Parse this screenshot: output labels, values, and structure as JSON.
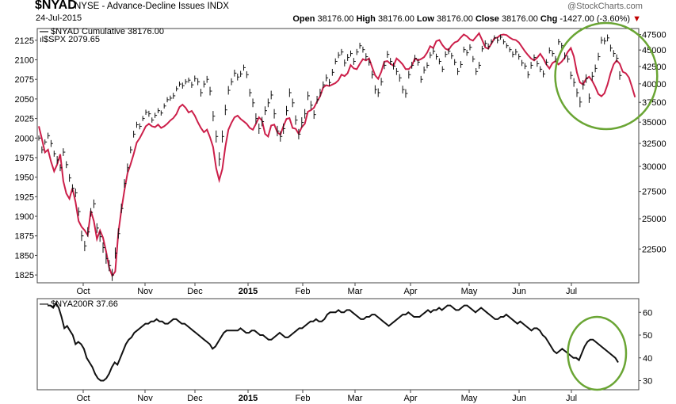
{
  "header": {
    "symbol": "$NYAD",
    "name": "NYSE - Advance-Decline Issues INDX",
    "date": "24-Jul-2015",
    "brand": "@StockCharts.com",
    "open_label": "Open",
    "open": "38176.00",
    "high_label": "High",
    "high": "38176.00",
    "low_label": "Low",
    "low": "38176.00",
    "close_label": "Close",
    "close": "38176.00",
    "chg_label": "Chg",
    "chg": "-1427.00 (-3.60%)",
    "chg_arrow": "▼"
  },
  "colors": {
    "spx": "#111111",
    "nyad": "#cc1f4a",
    "nya200r": "#111111",
    "highlight": "#6aa534"
  },
  "chart_data": [
    {
      "type": "line",
      "legend": [
        "$NYAD Cumulative 38176.00",
        "$SPX 2079.65"
      ],
      "x_ticks": [
        "Oct",
        "Nov",
        "Dec",
        "2015",
        "Feb",
        "Mar",
        "Apr",
        "May",
        "Jun",
        "Jul"
      ],
      "left_axis": {
        "ticks": [
          1825,
          1850,
          1875,
          1900,
          1925,
          1950,
          1975,
          2000,
          2025,
          2050,
          2075,
          2100,
          2125
        ],
        "ylim": [
          1815,
          2140
        ]
      },
      "right_axis": {
        "ticks": [
          22500,
          25000,
          27500,
          30000,
          32500,
          35000,
          37500,
          40000,
          42500,
          45000,
          47500
        ],
        "scale": "log",
        "ylim": [
          20000,
          48500
        ]
      },
      "series": [
        {
          "name": "$SPX",
          "axis": "left",
          "style": "hlc-bars",
          "values": [
            2000,
            1985,
            1995,
            2003,
            1993,
            1980,
            1972,
            1962,
            1982,
            1966,
            1949,
            1936,
            1930,
            1906,
            1875,
            1862,
            1880,
            1905,
            1916,
            1885,
            1874,
            1860,
            1846,
            1837,
            1825,
            1853,
            1878,
            1910,
            1942,
            1962,
            1985,
            2005,
            2017,
            2015,
            2025,
            2033,
            2031,
            2023,
            2029,
            2035,
            2032,
            2041,
            2049,
            2051,
            2054,
            2063,
            2069,
            2067,
            2072,
            2074,
            2068,
            2076,
            2072,
            2058,
            2069,
            2075,
            2060,
            2028,
            2002,
            1973,
            2002,
            2036,
            2061,
            2072,
            2083,
            2078,
            2082,
            2090,
            2081,
            2058,
            2045,
            2025,
            2012,
            2021,
            2035,
            2045,
            2055,
            2031,
            2009,
            2002,
            2012,
            2035,
            2058,
            2045,
            2023,
            2005,
            2020,
            2031,
            2054,
            2042,
            2030,
            2049,
            2058,
            2068,
            2077,
            2071,
            2084,
            2098,
            2106,
            2110,
            2096,
            2103,
            2108,
            2098,
            2110,
            2118,
            2113,
            2104,
            2097,
            2081,
            2062,
            2058,
            2072,
            2093,
            2107,
            2098,
            2092,
            2085,
            2077,
            2062,
            2057,
            2081,
            2093,
            2102,
            2097,
            2075,
            2087,
            2093,
            2106,
            2111,
            2104,
            2098,
            2088,
            2107,
            2111,
            2105,
            2097,
            2085,
            2094,
            2113,
            2109,
            2116,
            2101,
            2085,
            2093,
            2114,
            2121,
            2117,
            2123,
            2128,
            2125,
            2129,
            2123,
            2118,
            2113,
            2107,
            2110,
            2104,
            2096,
            2092,
            2081,
            2093,
            2103,
            2095,
            2088,
            2082,
            2097,
            2112,
            2108,
            2101,
            2123,
            2118,
            2105,
            2101,
            2080,
            2071,
            2058,
            2046,
            2068,
            2076,
            2051,
            2079,
            2089,
            2104,
            2125,
            2124,
            2128,
            2115,
            2108,
            2102,
            2080
          ],
          "range": [
            6,
            8,
            6,
            7,
            8,
            7,
            9,
            8,
            9,
            8,
            9,
            9,
            10,
            10,
            12,
            12,
            11,
            10,
            10,
            11,
            12,
            12,
            12,
            13,
            14,
            13,
            12,
            11,
            10,
            10,
            8,
            8,
            7,
            7,
            6,
            6,
            7,
            6,
            6,
            6,
            6,
            6,
            6,
            6,
            7,
            6,
            6,
            7,
            6,
            6,
            7,
            7,
            8,
            9,
            8,
            8,
            10,
            12,
            14,
            16,
            14,
            12,
            10,
            8,
            8,
            8,
            7,
            7,
            8,
            9,
            10,
            12,
            12,
            11,
            10,
            10,
            10,
            11,
            12,
            12,
            12,
            11,
            10,
            10,
            11,
            12,
            12,
            11,
            10,
            10,
            10,
            9,
            9,
            8,
            8,
            8,
            8,
            7,
            7,
            7,
            8,
            8,
            7,
            8,
            7,
            7,
            7,
            8,
            8,
            9,
            10,
            10,
            9,
            9,
            8,
            8,
            8,
            8,
            9,
            9,
            10,
            9,
            8,
            8,
            8,
            8,
            8,
            7,
            7,
            7,
            7,
            7,
            7,
            7,
            7,
            7,
            7,
            8,
            8,
            7,
            7,
            7,
            7,
            8,
            8,
            7,
            7,
            7,
            6,
            6,
            7,
            6,
            6,
            6,
            6,
            7,
            7,
            7,
            7,
            7,
            8,
            8,
            7,
            7,
            7,
            8,
            7,
            7,
            7,
            7,
            7,
            7,
            8,
            8,
            9,
            10,
            10,
            12,
            11,
            10,
            11,
            10,
            9,
            9,
            8,
            8,
            8,
            8,
            8,
            9,
            10
          ]
        },
        {
          "name": "$NYAD Cumulative",
          "axis": "right",
          "values": [
            34500,
            33000,
            31500,
            31800,
            30500,
            29500,
            30200,
            31300,
            28500,
            27300,
            26800,
            27800,
            26500,
            24800,
            24300,
            24000,
            23600,
            25700,
            24800,
            23300,
            24000,
            23400,
            22300,
            21100,
            20500,
            20800,
            23800,
            25800,
            27600,
            29300,
            30200,
            31300,
            32600,
            33100,
            33800,
            34500,
            34800,
            34500,
            34400,
            34700,
            34300,
            34500,
            34800,
            35200,
            35500,
            36000,
            36900,
            37200,
            36800,
            36200,
            36400,
            35800,
            35000,
            34300,
            33800,
            34100,
            33200,
            32100,
            29800,
            28600,
            29700,
            32100,
            34100,
            34900,
            35600,
            35800,
            35400,
            35100,
            34800,
            34300,
            34100,
            34800,
            35600,
            35200,
            33600,
            33300,
            34600,
            34700,
            33800,
            33500,
            34500,
            35400,
            35500,
            34300,
            34200,
            33600,
            34400,
            34800,
            36300,
            36500,
            36800,
            37600,
            38300,
            39500,
            39800,
            39700,
            39900,
            40100,
            40500,
            41300,
            41100,
            41500,
            42700,
            42200,
            42100,
            42900,
            43600,
            43400,
            43700,
            42400,
            41200,
            40700,
            41700,
            43200,
            43300,
            42900,
            42600,
            43700,
            43300,
            42800,
            42100,
            42100,
            42600,
            43700,
            43400,
            43600,
            43900,
            44600,
            45600,
            45300,
            46400,
            46600,
            45800,
            45200,
            45000,
            45700,
            46200,
            46400,
            47000,
            47500,
            47200,
            46700,
            46500,
            47100,
            47700,
            46600,
            45400,
            45200,
            46000,
            46900,
            47000,
            47400,
            47500,
            47400,
            47000,
            46700,
            46600,
            46200,
            45500,
            44800,
            44200,
            43700,
            43400,
            43800,
            44400,
            43700,
            42800,
            42200,
            43000,
            43300,
            42800,
            43200,
            43800,
            44700,
            45300,
            44000,
            41600,
            40200,
            39900,
            40700,
            41000,
            40400,
            39600,
            38600,
            38300,
            38700,
            39900,
            41500,
            42800,
            43400,
            42900,
            41700,
            41500,
            40900,
            39600,
            38176
          ]
        },
        {
          "name": "highlight",
          "style": "ellipse",
          "x_index": [
            172,
            195
          ]
        }
      ]
    },
    {
      "type": "line",
      "legend": [
        "$NYA200R 37.66"
      ],
      "x_ticks": [
        "Oct",
        "Nov",
        "Dec",
        "2015",
        "Feb",
        "Mar",
        "Apr",
        "May",
        "Jun",
        "Jul"
      ],
      "right_axis": {
        "ticks": [
          30,
          40,
          50,
          60
        ],
        "ylim": [
          26,
          66
        ]
      },
      "series": [
        {
          "name": "$NYA200R",
          "values": [
            63,
            63,
            62,
            64,
            62,
            58,
            53,
            54,
            52,
            50,
            46,
            47,
            46,
            44,
            40,
            38,
            36,
            33,
            31,
            30,
            30,
            31,
            33,
            36,
            38,
            37,
            40,
            43,
            46,
            48,
            49,
            51,
            52,
            53,
            54,
            55,
            55,
            56,
            56,
            57,
            56,
            56,
            55,
            55,
            56,
            57,
            57,
            56,
            55,
            55,
            54,
            53,
            52,
            51,
            50,
            49,
            48,
            47,
            46,
            44,
            45,
            47,
            49,
            51,
            52,
            52,
            52,
            52,
            52,
            53,
            52,
            51,
            51,
            52,
            52,
            51,
            50,
            50,
            49,
            48,
            48,
            49,
            50,
            51,
            50,
            49,
            49,
            50,
            51,
            52,
            53,
            53,
            54,
            55,
            56,
            56,
            57,
            56,
            56,
            57,
            59,
            60,
            60,
            60,
            61,
            60,
            60,
            61,
            61,
            60,
            59,
            58,
            57,
            57,
            58,
            58,
            59,
            59,
            58,
            57,
            56,
            55,
            54,
            55,
            56,
            57,
            58,
            59,
            59,
            60,
            59,
            58,
            58,
            58,
            59,
            60,
            61,
            60,
            61,
            61,
            62,
            61,
            62,
            63,
            63,
            62,
            61,
            61,
            62,
            63,
            63,
            62,
            61,
            60,
            61,
            62,
            61,
            60,
            59,
            58,
            57,
            57,
            58,
            58,
            59,
            58,
            57,
            56,
            55,
            56,
            55,
            54,
            53,
            52,
            53,
            53,
            52,
            50,
            49,
            47,
            45,
            43,
            42,
            43,
            44,
            43,
            42,
            41,
            40,
            40,
            39,
            42,
            45,
            47,
            48,
            48,
            47,
            46,
            45,
            44,
            43,
            42,
            41,
            40,
            38
          ],
          "values_shown": "37.66"
        },
        {
          "name": "highlight",
          "style": "ellipse",
          "x_index": [
            190,
            204
          ]
        }
      ]
    }
  ]
}
